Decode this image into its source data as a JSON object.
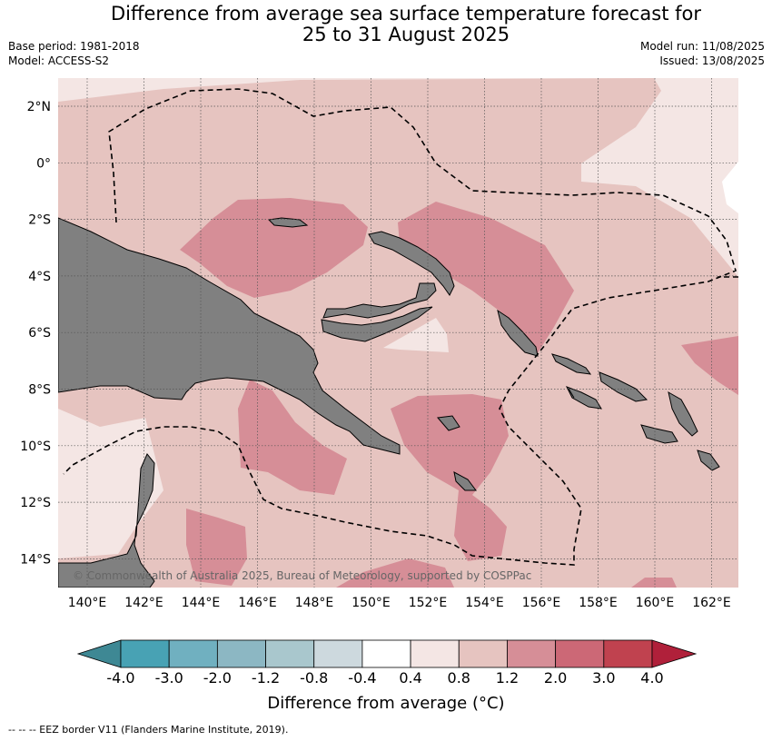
{
  "title_line1": "Difference from average sea surface temperature forecast for",
  "title_line2": "25 to 31 August 2025",
  "base_period": "Base period: 1981-2018",
  "model": "Model: ACCESS-S2",
  "model_run": "Model run: 11/08/2025",
  "issued": "Issued: 13/08/2025",
  "lat_labels": [
    "2°N",
    "0°",
    "2°S",
    "4°S",
    "6°S",
    "8°S",
    "10°S",
    "12°S",
    "14°S"
  ],
  "lon_labels": [
    "140°E",
    "142°E",
    "144°E",
    "146°E",
    "148°E",
    "150°E",
    "152°E",
    "154°E",
    "156°E",
    "158°E",
    "160°E",
    "162°E"
  ],
  "copyright": "© Commonwealth of Australia 2025, Bureau of Meteorology, supported by COSPPac",
  "colorbar": {
    "ticks": [
      "-4.0",
      "-3.0",
      "-2.0",
      "-1.2",
      "-0.8",
      "-0.4",
      "0.4",
      "0.8",
      "1.2",
      "2.0",
      "3.0",
      "4.0"
    ],
    "colors": [
      "#3e8894",
      "#48a2b4",
      "#70b0c0",
      "#8cb7c3",
      "#a9c7cd",
      "#cdd9de",
      "#ffffff",
      "#f4e6e4",
      "#e6c4c0",
      "#d68e97",
      "#cc6876",
      "#c0424f",
      "#b0203a"
    ],
    "title": "Difference from average (°C)"
  },
  "footnote": "--  --  -- EEZ border V11 (Flanders Marine Institute, 2019).",
  "colors": {
    "land": "#808080",
    "anomaly_0_4_to_0_8": "#f4e6e4",
    "anomaly_0_8_to_1_2": "#e6c4c0",
    "anomaly_1_2_to_2_0": "#d68e97",
    "anomaly_n04_to_04": "#ffffff"
  }
}
